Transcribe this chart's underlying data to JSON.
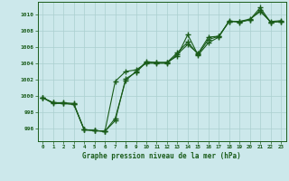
{
  "title": "Graphe pression niveau de la mer (hPa)",
  "background_color": "#cce8eb",
  "line_color": "#1a5c1a",
  "grid_color": "#aacfcf",
  "xlim": [
    -0.5,
    23.5
  ],
  "ylim": [
    994.5,
    1011.5
  ],
  "yticks": [
    996,
    998,
    1000,
    1002,
    1004,
    1006,
    1008,
    1010
  ],
  "xticks": [
    0,
    1,
    2,
    3,
    4,
    5,
    6,
    7,
    8,
    9,
    10,
    11,
    12,
    13,
    14,
    15,
    16,
    17,
    18,
    19,
    20,
    21,
    22,
    23
  ],
  "series": [
    [
      999.8,
      999.2,
      999.1,
      999.0,
      995.9,
      995.8,
      995.7,
      997.3,
      1001.9,
      1003.0,
      1004.2,
      1004.1,
      1004.1,
      1004.9,
      1007.5,
      1005.0,
      1006.5,
      1007.2,
      1009.2,
      1009.0,
      1009.3,
      1010.8,
      1009.0,
      1009.1
    ],
    [
      999.8,
      999.1,
      999.1,
      999.0,
      995.9,
      995.8,
      995.7,
      1001.8,
      1003.0,
      1003.2,
      1004.0,
      1004.0,
      1004.0,
      1005.1,
      1006.3,
      1005.2,
      1007.2,
      1007.3,
      1009.1,
      1009.1,
      1009.4,
      1010.3,
      1009.1,
      1009.2
    ],
    [
      999.8,
      999.2,
      999.2,
      999.1,
      995.9,
      995.8,
      995.7,
      997.0,
      1002.1,
      1002.9,
      1004.1,
      1004.1,
      1004.1,
      1005.3,
      1006.6,
      1005.1,
      1006.9,
      1007.3,
      1009.1,
      1009.1,
      1009.3,
      1010.5,
      1009.0,
      1009.1
    ]
  ]
}
